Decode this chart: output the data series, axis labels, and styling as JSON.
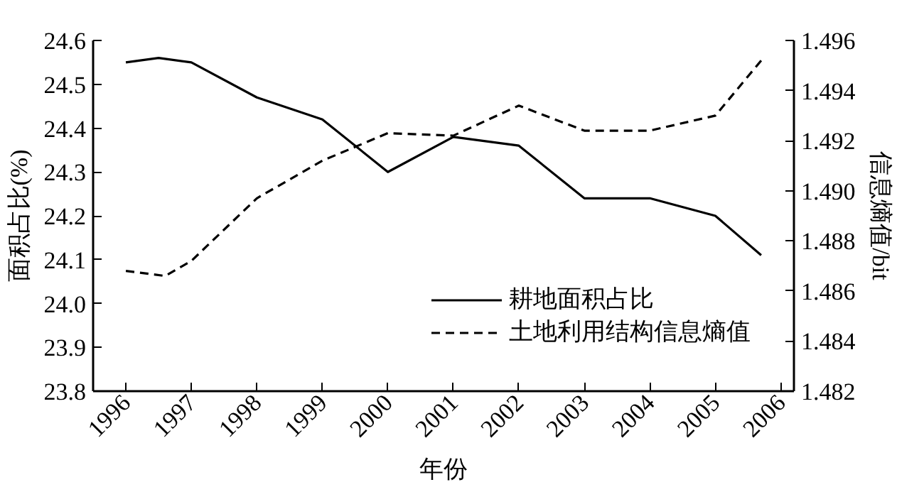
{
  "chart_data": {
    "type": "line",
    "xlabel": "年份",
    "ylabel": "面积占比(%)",
    "y2label": "信息熵值/bit",
    "series": [
      {
        "name": "耕地面积占比",
        "color": "#000000",
        "line_style": "solid",
        "x": [
          1996,
          1996.5,
          1997,
          1998,
          1999,
          2000,
          2001,
          2002,
          2003,
          2004,
          2005,
          2005.7
        ],
        "values": [
          24.55,
          24.56,
          24.55,
          24.47,
          24.42,
          24.3,
          24.38,
          24.36,
          24.24,
          24.24,
          24.2,
          24.11
        ]
      },
      {
        "name": "土地利用结构信息熵值",
        "color": "#000000",
        "line_style": "dashed",
        "axis": "y2",
        "x": [
          1996,
          1996.6,
          1997,
          1998,
          1999,
          2000,
          2001,
          2002,
          2003,
          2004,
          2005,
          2005.7
        ],
        "values": [
          1.4868,
          1.4866,
          1.4872,
          1.4897,
          1.4912,
          1.4923,
          1.4922,
          1.4934,
          1.4924,
          1.4924,
          1.493,
          1.4952
        ]
      }
    ],
    "xlim": [
      1995.5,
      2006.2
    ],
    "xticks": [
      {
        "value": 1996,
        "label": "1996"
      },
      {
        "value": 1997,
        "label": "1997"
      },
      {
        "value": 1998,
        "label": "1998"
      },
      {
        "value": 1999,
        "label": "1999"
      },
      {
        "value": 2000,
        "label": "2000"
      },
      {
        "value": 2001,
        "label": "2001"
      },
      {
        "value": 2002,
        "label": "2002"
      },
      {
        "value": 2003,
        "label": "2003"
      },
      {
        "value": 2004,
        "label": "2004"
      },
      {
        "value": 2005,
        "label": "2005"
      },
      {
        "value": 2006,
        "label": "2006"
      }
    ],
    "ylim": [
      23.8,
      24.6
    ],
    "yticks": [
      {
        "value": 23.8,
        "label": "23.8"
      },
      {
        "value": 23.9,
        "label": "23.9"
      },
      {
        "value": 24.0,
        "label": "24.0"
      },
      {
        "value": 24.1,
        "label": "24.1"
      },
      {
        "value": 24.2,
        "label": "24.2"
      },
      {
        "value": 24.3,
        "label": "24.3"
      },
      {
        "value": 24.4,
        "label": "24.4"
      },
      {
        "value": 24.5,
        "label": "24.5"
      },
      {
        "value": 24.6,
        "label": "24.6"
      }
    ],
    "y2lim": [
      1.482,
      1.496
    ],
    "y2ticks": [
      1.482,
      1.484,
      1.486,
      1.488,
      {
        "value": 1.49,
        "label": "1.490"
      },
      1.492,
      1.494,
      1.496
    ],
    "grid": false,
    "legend": "bottom right",
    "marker": "none"
  }
}
